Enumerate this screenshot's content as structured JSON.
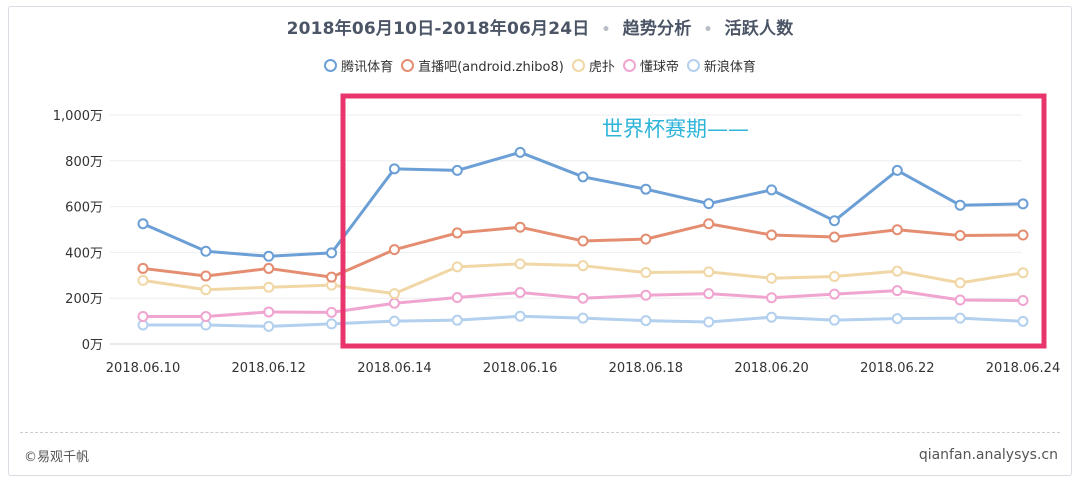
{
  "title": {
    "range": "2018年06月10日-2018年06月24日",
    "dot": "•",
    "metric": "趋势分析",
    "kind": "活跃人数"
  },
  "footer": {
    "brand": "©易观千帆",
    "site": "qianfan.analysys.cn"
  },
  "annotation": {
    "label": "世界杯赛期——",
    "color": "#e8356b"
  },
  "colors": {
    "grid": "#eceef1",
    "axis_text": "#333333"
  },
  "chart_data": {
    "type": "line",
    "title": "2018年06月10日-2018年06月24日 • 趋势分析 • 活跃人数",
    "xlabel": "",
    "ylabel": "",
    "ylim": [
      0,
      1000
    ],
    "yticks": [
      "0万",
      "200万",
      "400万",
      "600万",
      "800万",
      "1,000万"
    ],
    "ytick_values": [
      0,
      200,
      400,
      600,
      800,
      1000
    ],
    "categories": [
      "2018.06.10",
      "2018.06.11",
      "2018.06.12",
      "2018.06.13",
      "2018.06.14",
      "2018.06.15",
      "2018.06.16",
      "2018.06.17",
      "2018.06.18",
      "2018.06.19",
      "2018.06.20",
      "2018.06.21",
      "2018.06.22",
      "2018.06.23",
      "2018.06.24"
    ],
    "xtick_labels": [
      "2018.06.10",
      "",
      "2018.06.12",
      "",
      "2018.06.14",
      "",
      "2018.06.16",
      "",
      "2018.06.18",
      "",
      "2018.06.20",
      "",
      "2018.06.22",
      "",
      "2018.06.24"
    ],
    "legend_position": "top-center",
    "series": [
      {
        "name": "腾讯体育",
        "color": "#6b9fd6",
        "values": [
          525,
          405,
          383,
          398,
          765,
          758,
          837,
          730,
          676,
          613,
          673,
          538,
          758,
          606,
          612
        ]
      },
      {
        "name": "直播吧(android.zhibo8)",
        "color": "#e48d71",
        "values": [
          330,
          297,
          330,
          292,
          412,
          485,
          510,
          450,
          458,
          525,
          476,
          467,
          499,
          474,
          476
        ]
      },
      {
        "name": "虎扑",
        "color": "#f0d7a5",
        "values": [
          278,
          237,
          248,
          257,
          220,
          337,
          350,
          342,
          312,
          315,
          287,
          295,
          318,
          267,
          311
        ]
      },
      {
        "name": "懂球帝",
        "color": "#f0a5d0",
        "values": [
          120,
          120,
          140,
          138,
          178,
          203,
          225,
          200,
          213,
          220,
          202,
          218,
          233,
          192,
          190
        ]
      },
      {
        "name": "新浪体育",
        "color": "#b3d0ee",
        "values": [
          83,
          83,
          77,
          88,
          100,
          104,
          121,
          113,
          102,
          96,
          117,
          104,
          111,
          113,
          99
        ]
      }
    ]
  }
}
